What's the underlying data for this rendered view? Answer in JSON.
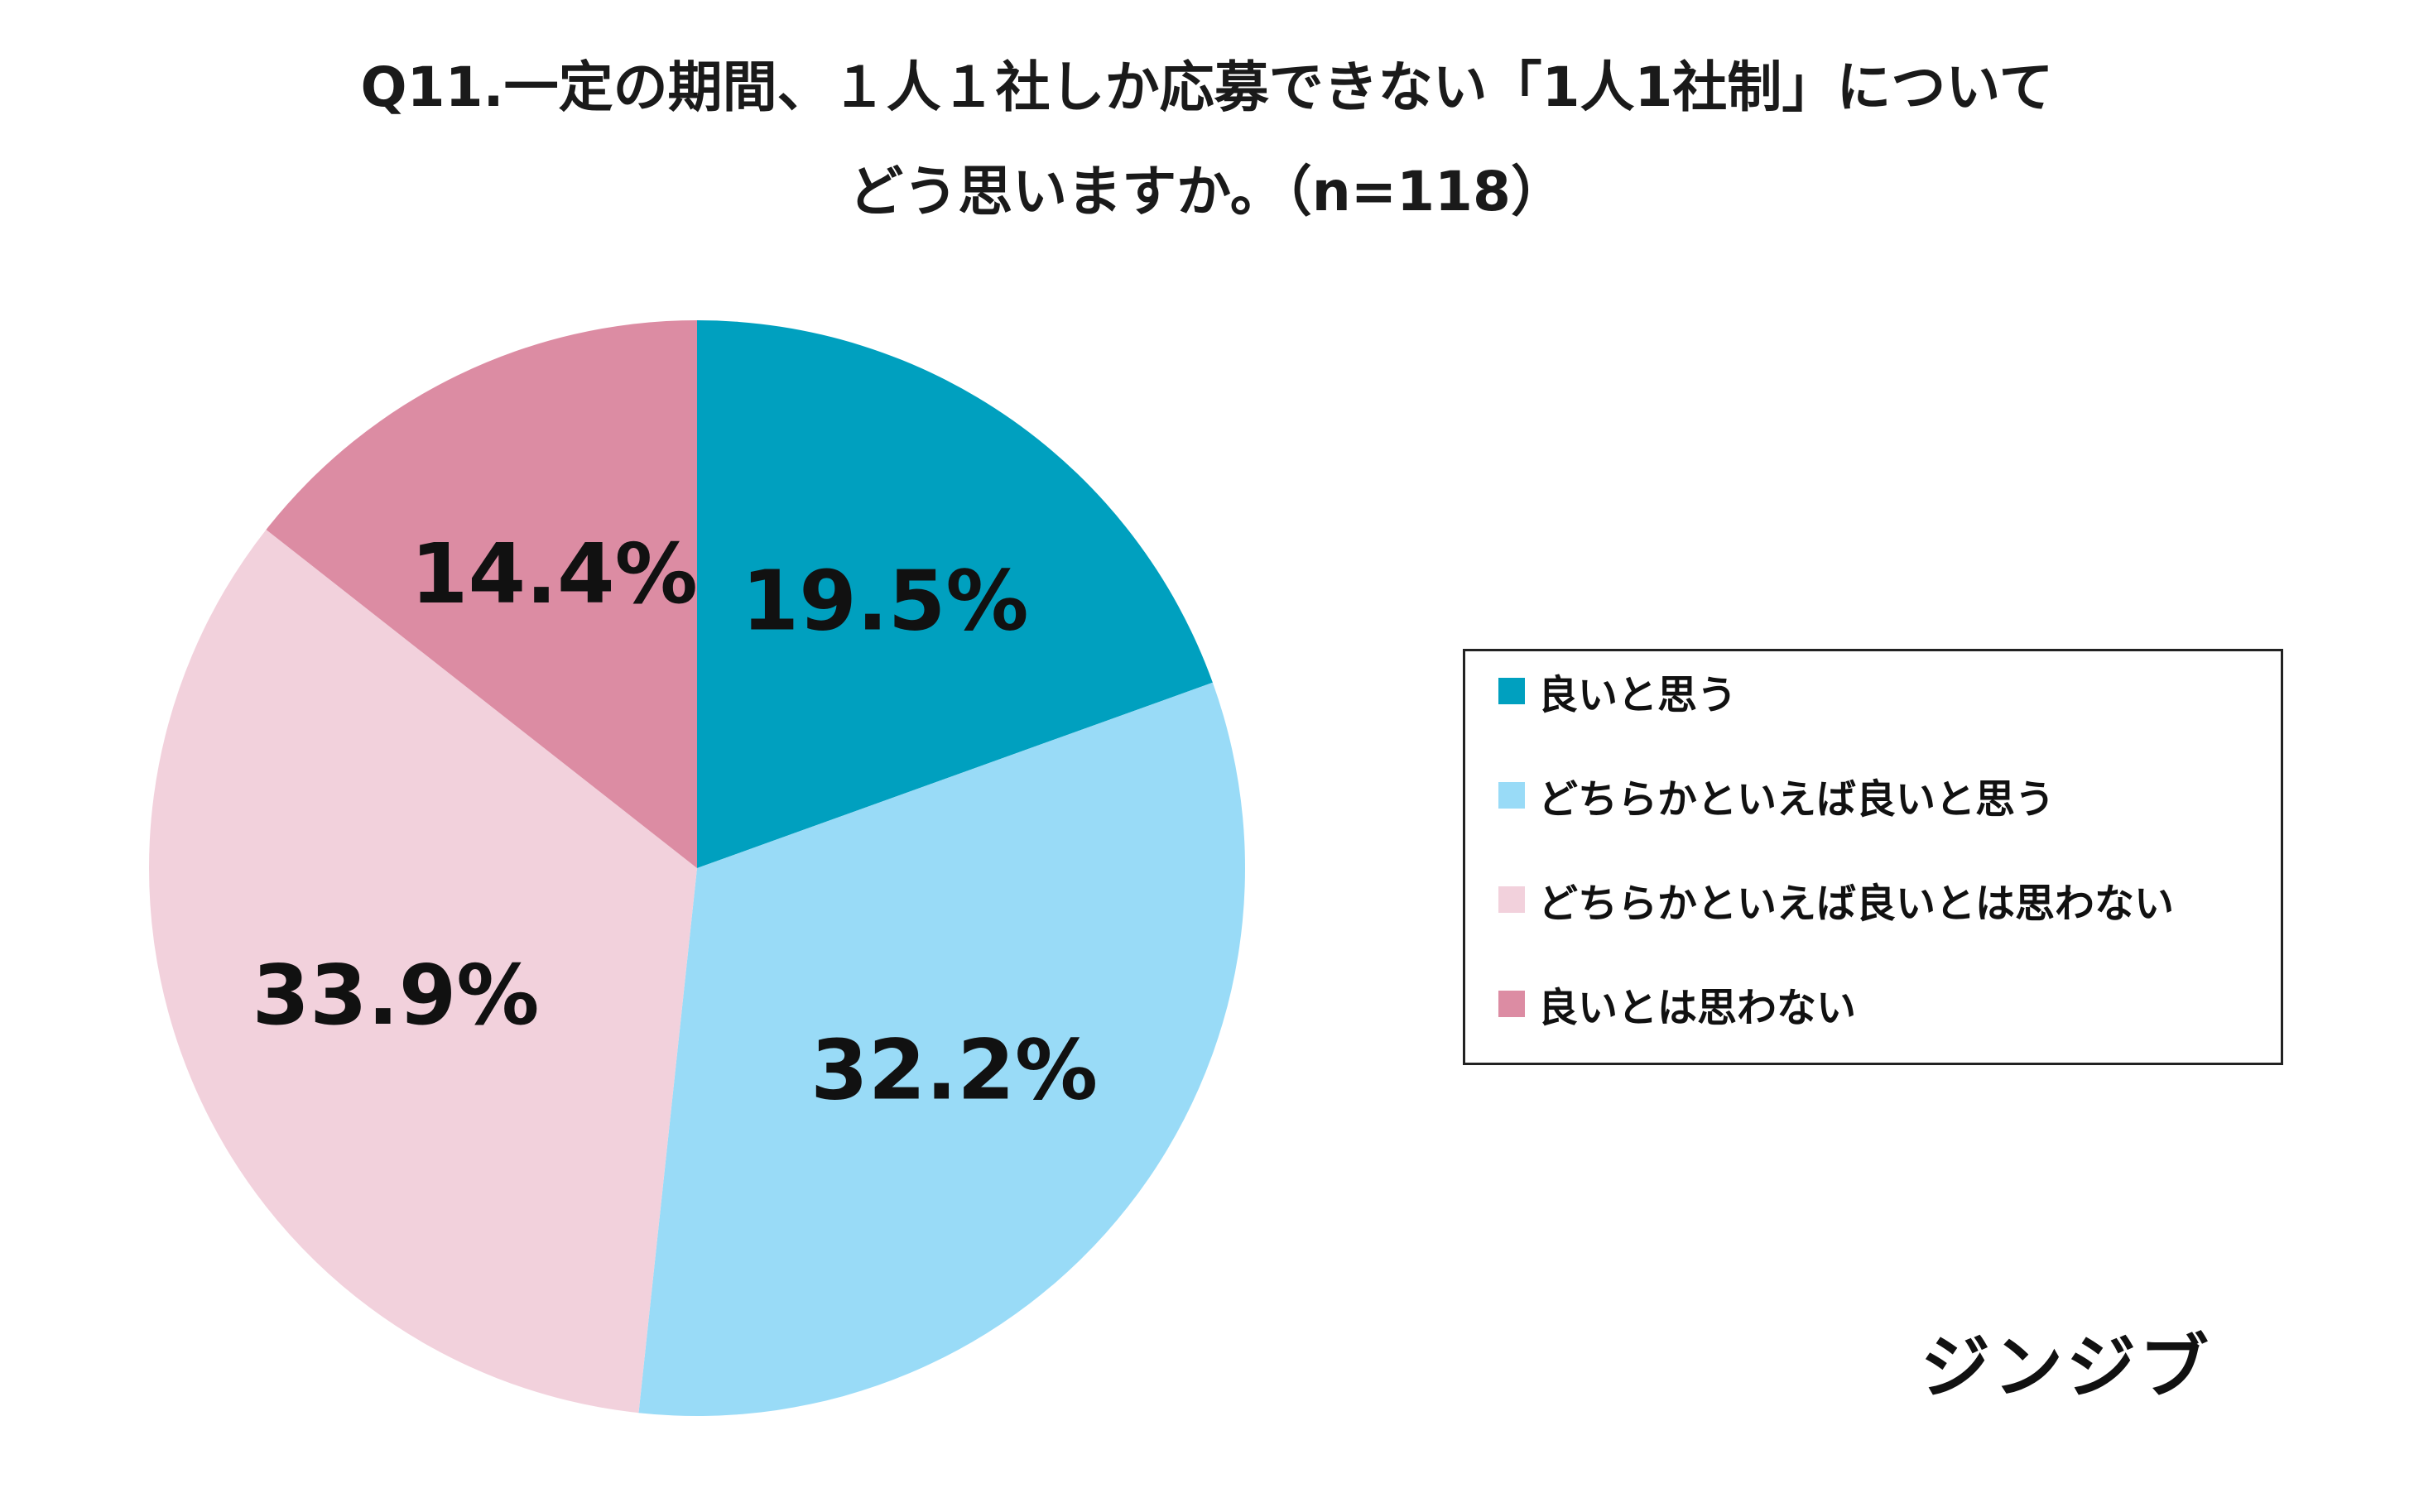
{
  "title_line1": "Q11.一定の期間、１人１社しか応募できない「1人1社制」について",
  "title_line2": "どう思いますか。（n=118）",
  "brand": "ジンジブ",
  "chart_data": {
    "type": "pie",
    "categories": [
      "良いと思う",
      "どちらかといえば良いと思う",
      "どちらかといえば良いとは思わない",
      "良いとは思わない"
    ],
    "values": [
      19.5,
      32.2,
      33.9,
      14.4
    ],
    "labels": [
      "19.5%",
      "32.2%",
      "33.9%",
      "14.4%"
    ],
    "colors": [
      "#00A0BF",
      "#99DBF7",
      "#F2D1DC",
      "#DC8CA3"
    ],
    "start": "12 o'clock",
    "direction": "clockwise",
    "legend": "right"
  }
}
